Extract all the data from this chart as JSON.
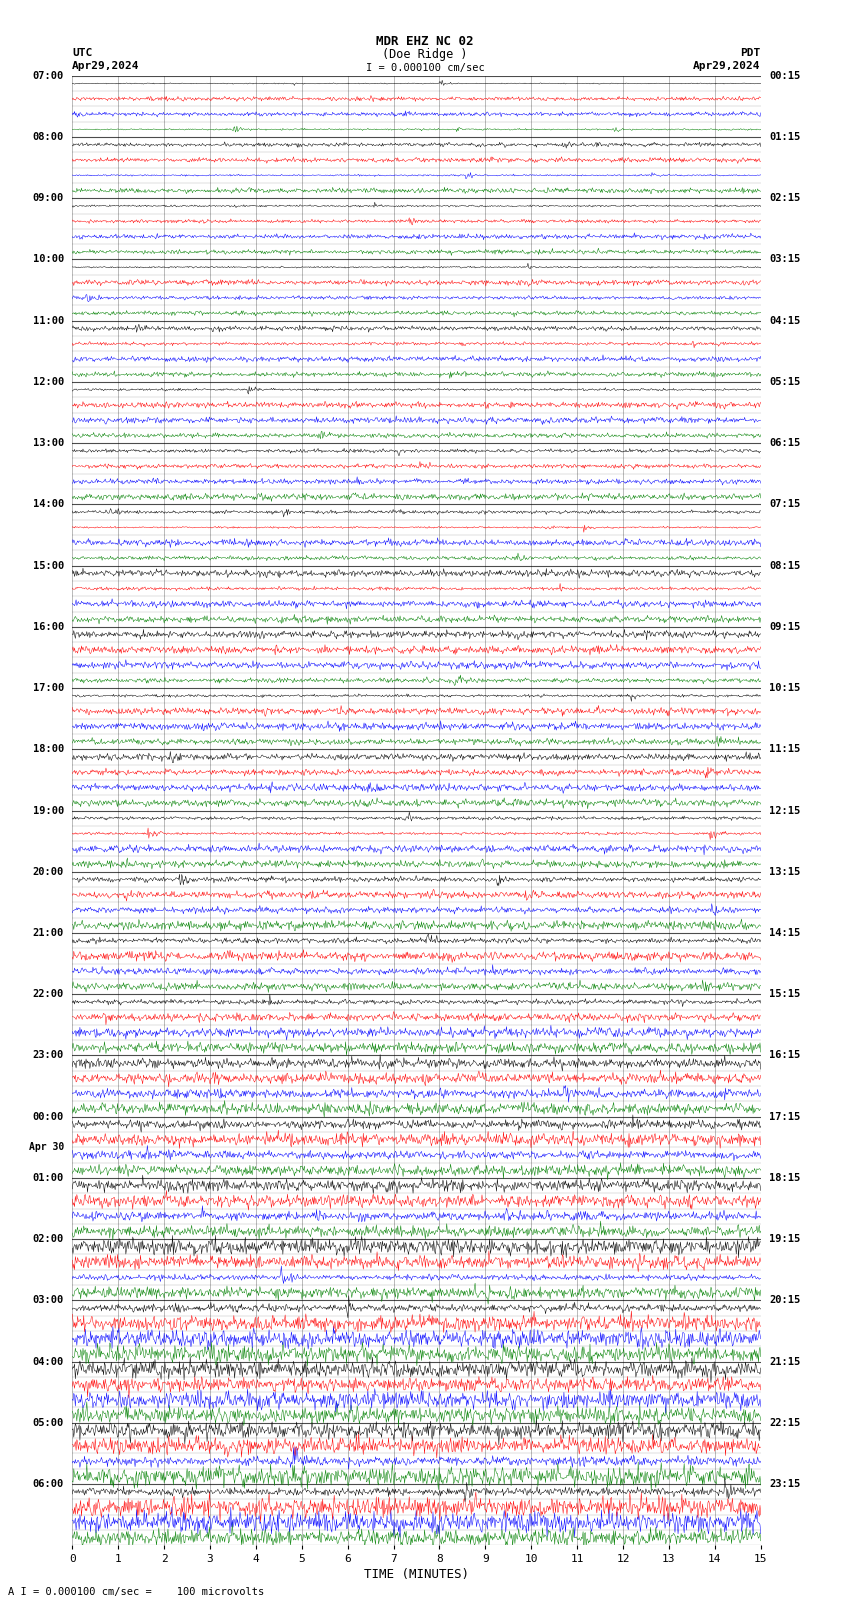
{
  "title_line1": "MDR EHZ NC 02",
  "title_line2": "(Doe Ridge )",
  "scale_label": "I = 0.000100 cm/sec",
  "utc_label": "UTC",
  "pdt_label": "PDT",
  "date_left": "Apr29,2024",
  "date_right": "Apr29,2024",
  "xlabel": "TIME (MINUTES)",
  "footnote": "A I = 0.000100 cm/sec =    100 microvolts",
  "x_ticks": [
    0,
    1,
    2,
    3,
    4,
    5,
    6,
    7,
    8,
    9,
    10,
    11,
    12,
    13,
    14,
    15
  ],
  "trace_colors": [
    "black",
    "red",
    "blue",
    "green"
  ],
  "bg_color": "#ffffff",
  "grid_color": "#888888",
  "fig_width": 8.5,
  "fig_height": 16.13,
  "dpi": 100,
  "left_time_labels": [
    "07:00",
    "08:00",
    "09:00",
    "10:00",
    "11:00",
    "12:00",
    "13:00",
    "14:00",
    "15:00",
    "16:00",
    "17:00",
    "18:00",
    "19:00",
    "20:00",
    "21:00",
    "22:00",
    "23:00",
    "00:00",
    "01:00",
    "02:00",
    "03:00",
    "04:00",
    "05:00",
    "06:00"
  ],
  "right_time_labels": [
    "00:15",
    "01:15",
    "02:15",
    "03:15",
    "04:15",
    "05:15",
    "06:15",
    "07:15",
    "08:15",
    "09:15",
    "10:15",
    "11:15",
    "12:15",
    "13:15",
    "14:15",
    "15:15",
    "16:15",
    "17:15",
    "18:15",
    "19:15",
    "20:15",
    "21:15",
    "22:15",
    "23:15"
  ],
  "date_change_label": "Apr 30",
  "date_change_row": 17,
  "num_hour_rows": 24,
  "traces_per_hour": 4,
  "seed": 42,
  "noise_base": 0.18,
  "spike_probability": 0.15
}
